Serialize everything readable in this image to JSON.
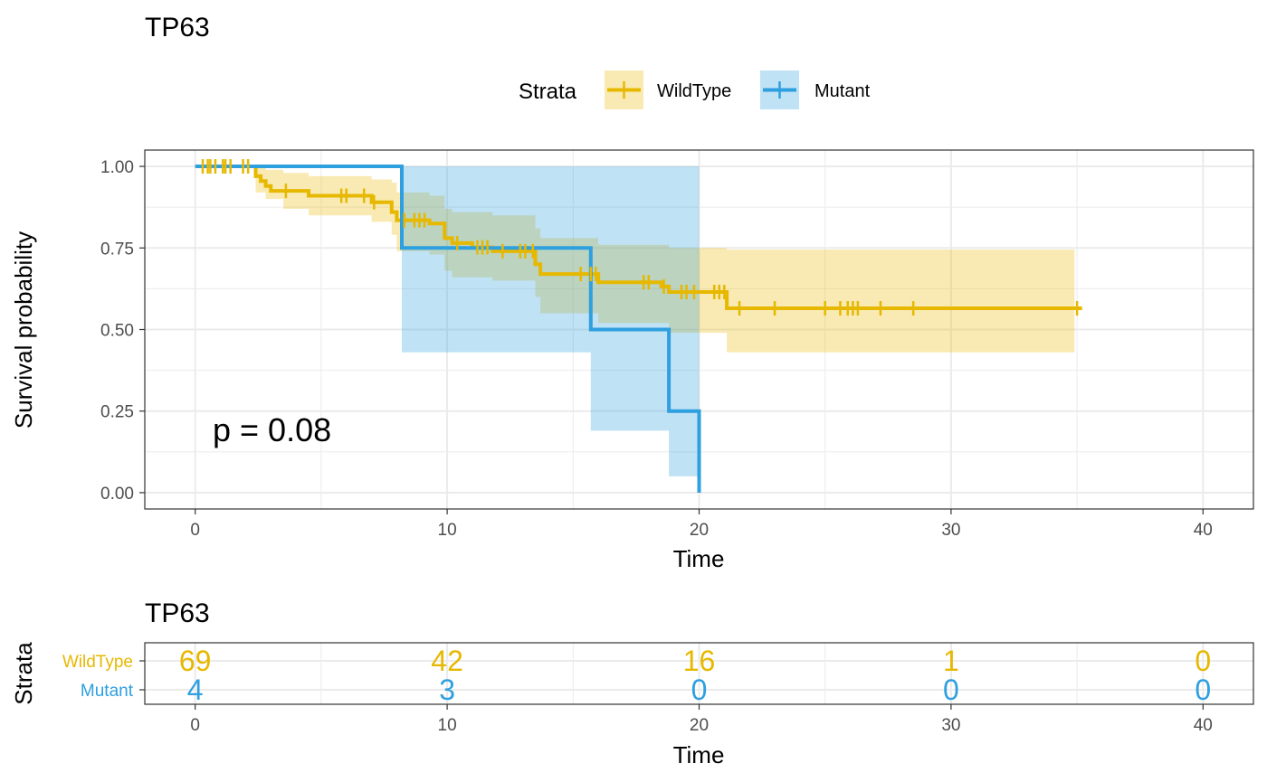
{
  "colors": {
    "wildtype": "#E7B800",
    "mutant": "#2E9FDF",
    "grid": "#EBEBEB",
    "axis_text": "#4D4D4D"
  },
  "legend": {
    "title": "Strata",
    "items": [
      "WildType",
      "Mutant"
    ]
  },
  "chart_data": [
    {
      "type": "line",
      "subtype": "kaplan-meier",
      "title": "TP63",
      "xlabel": "Time",
      "ylabel": "Survival probability",
      "xlim": [
        -2,
        42
      ],
      "ylim": [
        -0.05,
        1.05
      ],
      "xticks": [
        0,
        10,
        20,
        30,
        40
      ],
      "yticks": [
        0.0,
        0.25,
        0.5,
        0.75,
        1.0
      ],
      "ytick_labels": [
        "0.00",
        "0.25",
        "0.50",
        "0.75",
        "1.00"
      ],
      "grid": true,
      "legend_position": "top",
      "annotation": "p = 0.08",
      "series": [
        {
          "name": "WildType",
          "steps": [
            [
              0,
              1.0
            ],
            [
              2.4,
              0.97
            ],
            [
              2.6,
              0.955
            ],
            [
              2.8,
              0.94
            ],
            [
              3.0,
              0.925
            ],
            [
              4.5,
              0.91
            ],
            [
              7.0,
              0.89
            ],
            [
              7.8,
              0.86
            ],
            [
              8.0,
              0.835
            ],
            [
              9.3,
              0.825
            ],
            [
              9.9,
              0.78
            ],
            [
              10.2,
              0.765
            ],
            [
              11.0,
              0.752
            ],
            [
              11.8,
              0.74
            ],
            [
              13.5,
              0.7
            ],
            [
              13.7,
              0.67
            ],
            [
              16.0,
              0.645
            ],
            [
              18.5,
              0.632
            ],
            [
              18.8,
              0.615
            ],
            [
              21.1,
              0.565
            ],
            [
              35.2,
              0.565
            ]
          ],
          "ci": [
            [
              0,
              1.0,
              1.0
            ],
            [
              2.4,
              0.92,
              1.0
            ],
            [
              2.8,
              0.9,
              0.99
            ],
            [
              3.5,
              0.87,
              0.98
            ],
            [
              4.5,
              0.85,
              0.97
            ],
            [
              7.0,
              0.83,
              0.96
            ],
            [
              7.8,
              0.79,
              0.95
            ],
            [
              8.0,
              0.74,
              0.92
            ],
            [
              9.3,
              0.73,
              0.91
            ],
            [
              9.9,
              0.68,
              0.87
            ],
            [
              10.2,
              0.66,
              0.86
            ],
            [
              11.8,
              0.65,
              0.85
            ],
            [
              13.5,
              0.6,
              0.81
            ],
            [
              13.7,
              0.55,
              0.78
            ],
            [
              16.0,
              0.52,
              0.76
            ],
            [
              18.8,
              0.49,
              0.75
            ],
            [
              21.1,
              0.43,
              0.745
            ],
            [
              34.9,
              0.43,
              0.745
            ]
          ],
          "censor_times": [
            0.3,
            0.5,
            0.6,
            0.8,
            1.1,
            1.2,
            1.4,
            1.9,
            2.1,
            3.6,
            5.8,
            6.0,
            6.7,
            7.1,
            8.3,
            8.7,
            8.9,
            9.1,
            10.4,
            11.2,
            11.4,
            11.6,
            12.2,
            12.9,
            13.1,
            13.4,
            15.3,
            15.7,
            15.9,
            17.8,
            18.0,
            18.6,
            19.3,
            19.5,
            19.8,
            20.6,
            20.8,
            21.0,
            21.6,
            23.0,
            25.0,
            25.6,
            25.9,
            26.1,
            26.3,
            27.2,
            28.5,
            35.0
          ],
          "end_time": 35.2
        },
        {
          "name": "Mutant",
          "steps": [
            [
              0,
              1.0
            ],
            [
              8.2,
              0.75
            ],
            [
              15.7,
              0.5
            ],
            [
              18.8,
              0.25
            ],
            [
              20.0,
              0.0
            ]
          ],
          "ci": [
            [
              0,
              1.0,
              1.0
            ],
            [
              8.2,
              0.43,
              1.0
            ],
            [
              15.7,
              0.19,
              1.0
            ],
            [
              18.8,
              0.05,
              1.0
            ]
          ],
          "ci_end": 20.0,
          "censor_times": [],
          "end_time": 20.0
        }
      ]
    },
    {
      "type": "table",
      "title": "TP63",
      "xlabel": "Time",
      "ylabel": "Strata",
      "xticks": [
        0,
        10,
        20,
        30,
        40
      ],
      "rows": [
        {
          "name": "WildType",
          "values": [
            69,
            42,
            16,
            1,
            0
          ]
        },
        {
          "name": "Mutant",
          "values": [
            4,
            3,
            0,
            0,
            0
          ]
        }
      ]
    }
  ]
}
